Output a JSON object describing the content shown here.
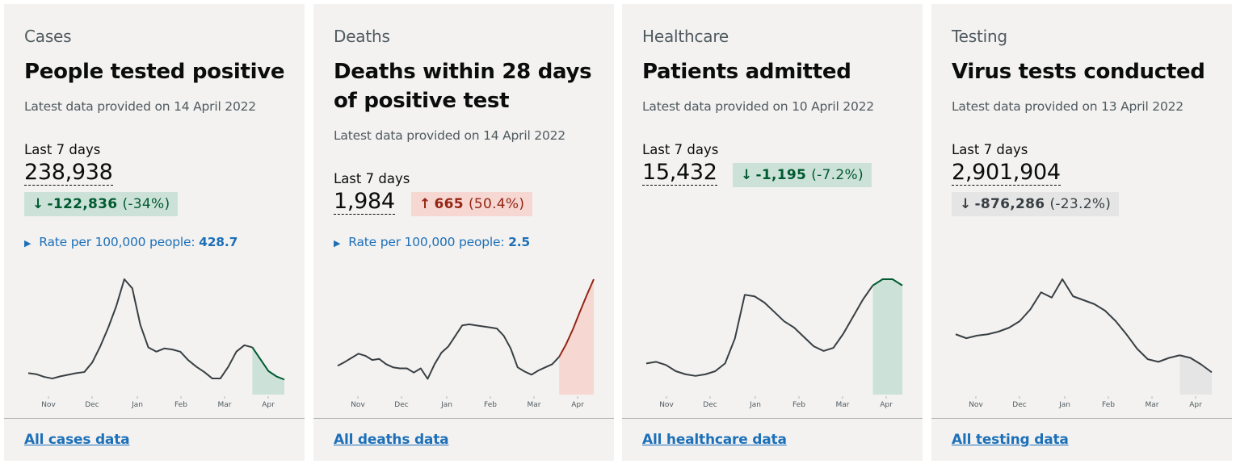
{
  "cards": [
    {
      "caption": "Cases",
      "title": "People tested positive",
      "latest": "Latest data provided on 14 April 2022",
      "last7_label": "Last 7 days",
      "value": "238,938",
      "change": {
        "direction": "down",
        "arrow": "↓",
        "value": "-122,836",
        "percent": "(-34%)",
        "status": "green"
      },
      "rate_label": "Rate per 100,000 people:",
      "rate_value": "428.7",
      "link": "All cases data"
    },
    {
      "caption": "Deaths",
      "title": "Deaths within 28 days of positive test",
      "latest": "Latest data provided on 14 April 2022",
      "last7_label": "Last 7 days",
      "value": "1,984",
      "change": {
        "direction": "up",
        "arrow": "↑",
        "value": "665",
        "percent": "(50.4%)",
        "status": "red"
      },
      "rate_label": "Rate per 100,000 people:",
      "rate_value": "2.5",
      "link": "All deaths data"
    },
    {
      "caption": "Healthcare",
      "title": "Patients admitted",
      "latest": "Latest data provided on 10 April 2022",
      "last7_label": "Last 7 days",
      "value": "15,432",
      "change": {
        "direction": "down",
        "arrow": "↓",
        "value": "-1,195",
        "percent": "(-7.2%)",
        "status": "green"
      },
      "link": "All healthcare data"
    },
    {
      "caption": "Testing",
      "title": "Virus tests conducted",
      "latest": "Latest data provided on 13 April 2022",
      "last7_label": "Last 7 days",
      "value": "2,901,904",
      "change": {
        "direction": "down",
        "arrow": "↓",
        "value": "-876,286",
        "percent": "(-23.2%)",
        "status": "grey"
      },
      "link": "All testing data"
    }
  ],
  "colors": {
    "card_bg": "#f3f2f1",
    "link": "#1d70b8",
    "green_bg": "#cce2d8",
    "green_text": "#005a30",
    "red_bg": "#f6d7d2",
    "red_text": "#942514",
    "grey_bg": "#e5e5e5",
    "grey_text": "#383f43"
  },
  "chart_data": [
    {
      "type": "line",
      "name": "cases",
      "x_ticks": [
        "Nov",
        "Dec",
        "Jan",
        "Feb",
        "Mar",
        "Apr"
      ],
      "values": [
        40,
        38,
        33,
        30,
        34,
        37,
        40,
        42,
        60,
        90,
        125,
        165,
        215,
        198,
        130,
        88,
        80,
        86,
        84,
        80,
        64,
        52,
        42,
        30,
        30,
        52,
        80,
        92,
        88,
        66,
        44,
        34,
        28
      ],
      "highlight_last": 4,
      "highlight_color": "green"
    },
    {
      "type": "line",
      "name": "deaths",
      "x_ticks": [
        "Nov",
        "Dec",
        "Jan",
        "Feb",
        "Mar",
        "Apr"
      ],
      "values": [
        55,
        62,
        70,
        78,
        74,
        66,
        68,
        58,
        52,
        50,
        50,
        42,
        50,
        30,
        58,
        80,
        92,
        112,
        132,
        134,
        132,
        130,
        128,
        126,
        112,
        88,
        52,
        44,
        38,
        46,
        52,
        58,
        72,
        96,
        125,
        158,
        190,
        220
      ],
      "highlight_last": 5,
      "highlight_color": "red"
    },
    {
      "type": "line",
      "name": "healthcare",
      "x_ticks": [
        "Nov",
        "Dec",
        "Jan",
        "Feb",
        "Mar",
        "Apr"
      ],
      "values": [
        40,
        42,
        38,
        30,
        26,
        24,
        26,
        30,
        40,
        72,
        128,
        126,
        118,
        106,
        94,
        86,
        74,
        62,
        56,
        60,
        78,
        100,
        122,
        140,
        148,
        148,
        140
      ],
      "highlight_last": 3,
      "highlight_color": "green"
    },
    {
      "type": "line",
      "name": "testing",
      "x_ticks": [
        "Nov",
        "Dec",
        "Jan",
        "Feb",
        "Mar",
        "Apr"
      ],
      "values": [
        92,
        86,
        90,
        92,
        96,
        102,
        112,
        130,
        156,
        148,
        176,
        150,
        144,
        138,
        128,
        112,
        92,
        70,
        54,
        50,
        56,
        60,
        56,
        46,
        34
      ],
      "highlight_last": 3,
      "highlight_color": "grey"
    }
  ]
}
